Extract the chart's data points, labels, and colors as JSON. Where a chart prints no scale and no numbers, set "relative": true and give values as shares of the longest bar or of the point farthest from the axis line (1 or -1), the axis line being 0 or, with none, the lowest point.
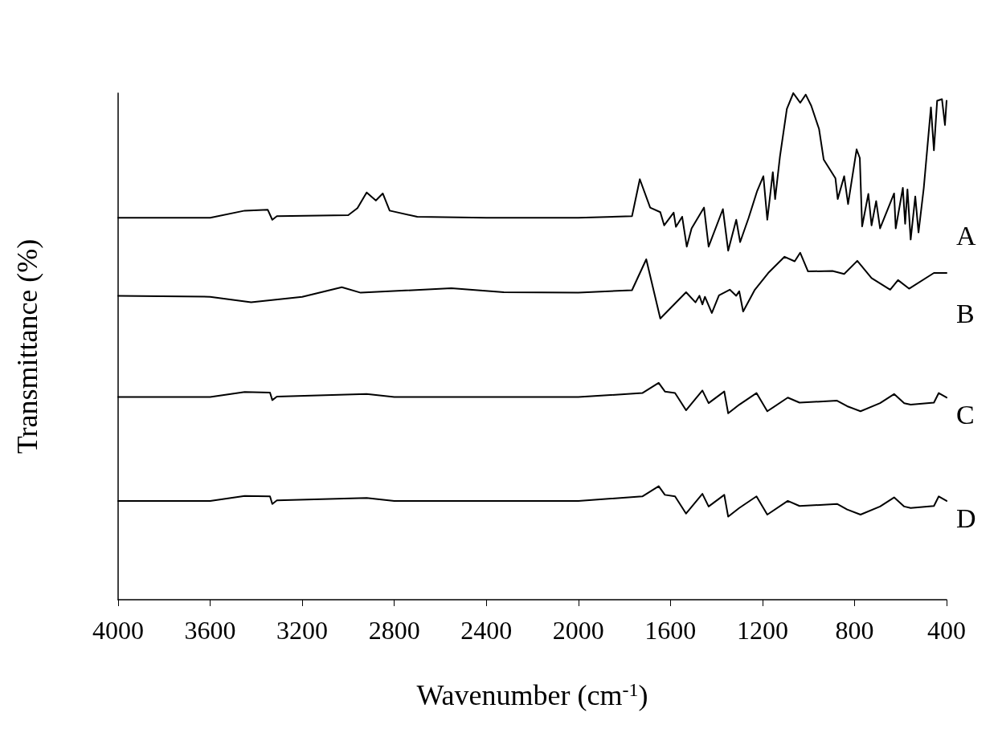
{
  "chart_data": {
    "type": "line",
    "relative": true,
    "xlabel": "Wavenumber (cm$^{-1}$)",
    "ylabel": "Transmittance (%)",
    "xlim": [
      4000,
      400
    ],
    "xticks": [
      4000,
      3600,
      3200,
      2800,
      2400,
      2000,
      1600,
      1200,
      800,
      400
    ],
    "grid": false,
    "legend": false,
    "marker": "none",
    "line_style": "solid",
    "series": [
      {
        "name": "A",
        "color": "#000000",
        "x": [
          4000,
          3600,
          3450,
          3350,
          3330,
          3310,
          3000,
          2960,
          2920,
          2880,
          2850,
          2820,
          2700,
          2400,
          2000,
          1767,
          1733,
          1688,
          1644,
          1627,
          1586,
          1576,
          1549,
          1529,
          1508,
          1454,
          1434,
          1372,
          1349,
          1314,
          1297,
          1260,
          1223,
          1196,
          1179,
          1155,
          1145,
          1124,
          1094,
          1066,
          1050,
          1036,
          1012,
          988,
          954,
          934,
          883,
          873,
          845,
          828,
          791,
          777,
          767,
          740,
          726,
          706,
          689,
          628,
          621,
          590,
          580,
          570,
          556,
          536,
          522,
          499,
          468,
          455,
          441,
          420,
          407,
          400
        ],
        "values": [
          0.754,
          0.754,
          0.768,
          0.77,
          0.75,
          0.757,
          0.759,
          0.773,
          0.804,
          0.788,
          0.802,
          0.768,
          0.756,
          0.754,
          0.754,
          0.757,
          0.83,
          0.774,
          0.765,
          0.739,
          0.764,
          0.736,
          0.756,
          0.697,
          0.733,
          0.774,
          0.697,
          0.771,
          0.689,
          0.75,
          0.706,
          0.754,
          0.807,
          0.836,
          0.75,
          0.844,
          0.791,
          0.875,
          0.969,
          1.0,
          0.99,
          0.981,
          0.997,
          0.975,
          0.929,
          0.869,
          0.832,
          0.791,
          0.836,
          0.781,
          0.889,
          0.872,
          0.737,
          0.801,
          0.739,
          0.787,
          0.733,
          0.802,
          0.733,
          0.813,
          0.742,
          0.81,
          0.711,
          0.796,
          0.725,
          0.813,
          0.972,
          0.887,
          0.985,
          0.988,
          0.937,
          0.985
        ]
      },
      {
        "name": "B",
        "color": "#000000",
        "x": [
          4000,
          3600,
          3422,
          3200,
          3028,
          2946,
          2552,
          2324,
          2000,
          1767,
          1705,
          1644,
          1532,
          1491,
          1474,
          1461,
          1450,
          1420,
          1389,
          1342,
          1314,
          1301,
          1284,
          1233,
          1175,
          1104,
          1060,
          1036,
          1002,
          896,
          845,
          788,
          726,
          645,
          611,
          563,
          455,
          400
        ],
        "values": [
          0.6,
          0.598,
          0.587,
          0.598,
          0.617,
          0.606,
          0.615,
          0.607,
          0.606,
          0.611,
          0.672,
          0.555,
          0.607,
          0.587,
          0.6,
          0.583,
          0.598,
          0.566,
          0.601,
          0.612,
          0.6,
          0.609,
          0.569,
          0.612,
          0.645,
          0.677,
          0.668,
          0.685,
          0.648,
          0.649,
          0.643,
          0.669,
          0.635,
          0.612,
          0.631,
          0.614,
          0.645,
          0.645
        ]
      },
      {
        "name": "C",
        "color": "#000000",
        "x": [
          4000,
          3600,
          3450,
          3340,
          3330,
          3310,
          2920,
          2800,
          2400,
          2000,
          1722,
          1651,
          1624,
          1580,
          1532,
          1461,
          1434,
          1366,
          1349,
          1301,
          1226,
          1179,
          1090,
          1039,
          876,
          832,
          774,
          689,
          628,
          584,
          556,
          455,
          434,
          400
        ],
        "values": [
          0.4,
          0.4,
          0.41,
          0.409,
          0.394,
          0.401,
          0.406,
          0.4,
          0.4,
          0.4,
          0.408,
          0.428,
          0.411,
          0.408,
          0.374,
          0.413,
          0.388,
          0.411,
          0.368,
          0.385,
          0.408,
          0.372,
          0.399,
          0.389,
          0.393,
          0.382,
          0.372,
          0.388,
          0.406,
          0.388,
          0.385,
          0.389,
          0.408,
          0.399
        ]
      },
      {
        "name": "D",
        "color": "#000000",
        "x": [
          4000,
          3600,
          3450,
          3340,
          3330,
          3310,
          2920,
          2800,
          2400,
          2000,
          1722,
          1651,
          1624,
          1580,
          1532,
          1461,
          1434,
          1366,
          1349,
          1301,
          1226,
          1179,
          1090,
          1039,
          876,
          832,
          774,
          689,
          628,
          584,
          556,
          455,
          434,
          400
        ],
        "values": [
          0.195,
          0.195,
          0.205,
          0.204,
          0.189,
          0.196,
          0.201,
          0.195,
          0.195,
          0.195,
          0.204,
          0.224,
          0.207,
          0.204,
          0.17,
          0.209,
          0.184,
          0.207,
          0.164,
          0.181,
          0.204,
          0.168,
          0.195,
          0.185,
          0.189,
          0.178,
          0.168,
          0.184,
          0.202,
          0.184,
          0.181,
          0.185,
          0.204,
          0.195
        ]
      }
    ]
  }
}
